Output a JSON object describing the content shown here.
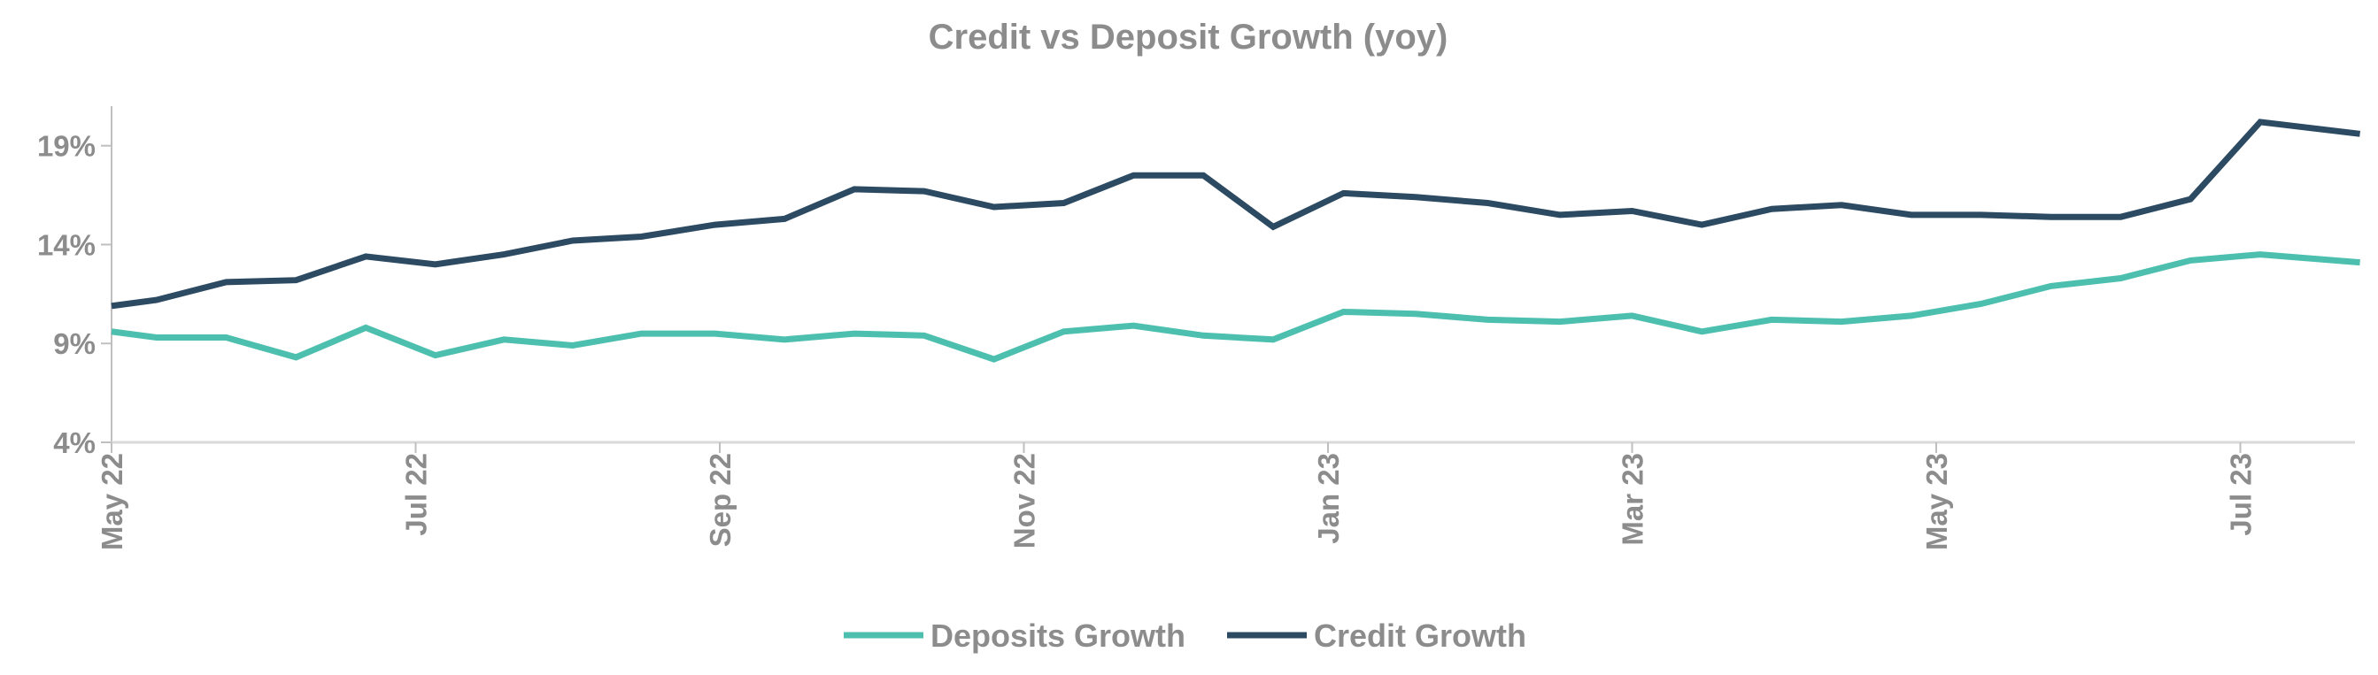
{
  "chart_data": {
    "type": "line",
    "title": "Credit vs Deposit Growth (yoy)",
    "xlabel": "",
    "ylabel": "",
    "ylim": [
      4,
      21
    ],
    "yticks": [
      4,
      9,
      14,
      19
    ],
    "ytick_labels": [
      "4%",
      "9%",
      "14%",
      "19%"
    ],
    "x_start": "2022-05-01",
    "x_end": "2023-07-25",
    "xtick_labels": [
      {
        "date": "2022-05-01",
        "label": "May 22"
      },
      {
        "date": "2022-07-01",
        "label": "Jul 22"
      },
      {
        "date": "2022-09-01",
        "label": "Sep 22"
      },
      {
        "date": "2022-11-01",
        "label": "Nov 22"
      },
      {
        "date": "2023-01-01",
        "label": "Jan 23"
      },
      {
        "date": "2023-03-01",
        "label": "Mar 23"
      },
      {
        "date": "2023-05-01",
        "label": "May 23"
      },
      {
        "date": "2023-07-01",
        "label": "Jul 23"
      }
    ],
    "grid": false,
    "legend_position": "bottom",
    "series": [
      {
        "name": "Deposits Growth",
        "color": "#4cbfae",
        "points": [
          {
            "x": "2022-05-01",
            "y": 9.6
          },
          {
            "x": "2022-05-10",
            "y": 9.3
          },
          {
            "x": "2022-05-24",
            "y": 9.3
          },
          {
            "x": "2022-06-07",
            "y": 8.3
          },
          {
            "x": "2022-06-21",
            "y": 9.8
          },
          {
            "x": "2022-07-05",
            "y": 8.4
          },
          {
            "x": "2022-07-19",
            "y": 9.2
          },
          {
            "x": "2022-08-02",
            "y": 8.9
          },
          {
            "x": "2022-08-16",
            "y": 9.5
          },
          {
            "x": "2022-08-31",
            "y": 9.5
          },
          {
            "x": "2022-09-14",
            "y": 9.2
          },
          {
            "x": "2022-09-28",
            "y": 9.5
          },
          {
            "x": "2022-10-12",
            "y": 9.4
          },
          {
            "x": "2022-10-26",
            "y": 8.2
          },
          {
            "x": "2022-11-09",
            "y": 9.6
          },
          {
            "x": "2022-11-23",
            "y": 9.9
          },
          {
            "x": "2022-12-07",
            "y": 9.4
          },
          {
            "x": "2022-12-21",
            "y": 9.2
          },
          {
            "x": "2023-01-04",
            "y": 10.6
          },
          {
            "x": "2023-01-18",
            "y": 10.5
          },
          {
            "x": "2023-02-01",
            "y": 10.2
          },
          {
            "x": "2023-02-15",
            "y": 10.1
          },
          {
            "x": "2023-03-01",
            "y": 10.4
          },
          {
            "x": "2023-03-15",
            "y": 9.6
          },
          {
            "x": "2023-03-29",
            "y": 10.2
          },
          {
            "x": "2023-04-12",
            "y": 10.1
          },
          {
            "x": "2023-04-26",
            "y": 10.4
          },
          {
            "x": "2023-05-10",
            "y": 11.0
          },
          {
            "x": "2023-05-24",
            "y": 11.9
          },
          {
            "x": "2023-06-07",
            "y": 12.3
          },
          {
            "x": "2023-06-21",
            "y": 13.2
          },
          {
            "x": "2023-07-05",
            "y": 13.5
          },
          {
            "x": "2023-07-25",
            "y": 13.1
          }
        ]
      },
      {
        "name": "Credit Growth",
        "color": "#2d4a63",
        "points": [
          {
            "x": "2022-05-01",
            "y": 10.9
          },
          {
            "x": "2022-05-10",
            "y": 11.2
          },
          {
            "x": "2022-05-24",
            "y": 12.1
          },
          {
            "x": "2022-06-07",
            "y": 12.2
          },
          {
            "x": "2022-06-21",
            "y": 13.4
          },
          {
            "x": "2022-07-05",
            "y": 13.0
          },
          {
            "x": "2022-07-19",
            "y": 13.5
          },
          {
            "x": "2022-08-02",
            "y": 14.2
          },
          {
            "x": "2022-08-16",
            "y": 14.4
          },
          {
            "x": "2022-08-31",
            "y": 15.0
          },
          {
            "x": "2022-09-14",
            "y": 15.3
          },
          {
            "x": "2022-09-28",
            "y": 16.8
          },
          {
            "x": "2022-10-12",
            "y": 16.7
          },
          {
            "x": "2022-10-26",
            "y": 15.9
          },
          {
            "x": "2022-11-09",
            "y": 16.1
          },
          {
            "x": "2022-11-23",
            "y": 17.5
          },
          {
            "x": "2022-12-07",
            "y": 17.5
          },
          {
            "x": "2022-12-21",
            "y": 14.9
          },
          {
            "x": "2023-01-04",
            "y": 16.6
          },
          {
            "x": "2023-01-18",
            "y": 16.4
          },
          {
            "x": "2023-02-01",
            "y": 16.1
          },
          {
            "x": "2023-02-15",
            "y": 15.5
          },
          {
            "x": "2023-03-01",
            "y": 15.7
          },
          {
            "x": "2023-03-15",
            "y": 15.0
          },
          {
            "x": "2023-03-29",
            "y": 15.8
          },
          {
            "x": "2023-04-12",
            "y": 16.0
          },
          {
            "x": "2023-04-26",
            "y": 15.5
          },
          {
            "x": "2023-05-10",
            "y": 15.5
          },
          {
            "x": "2023-05-24",
            "y": 15.4
          },
          {
            "x": "2023-06-07",
            "y": 15.4
          },
          {
            "x": "2023-06-21",
            "y": 16.3
          },
          {
            "x": "2023-07-05",
            "y": 20.2
          },
          {
            "x": "2023-07-25",
            "y": 19.6
          }
        ]
      }
    ]
  }
}
